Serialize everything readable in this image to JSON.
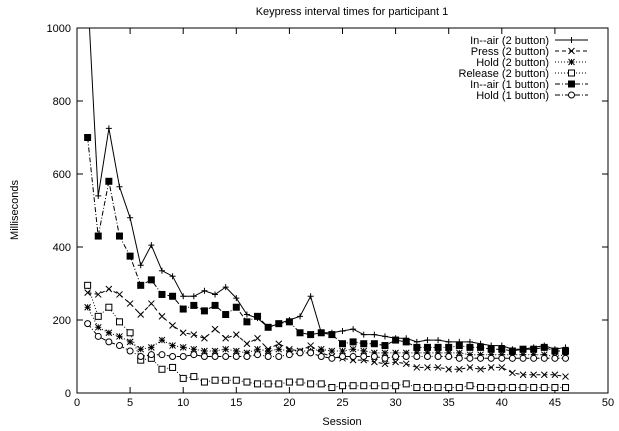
{
  "chart_data": {
    "type": "line",
    "title": "Keypress interval times for participant 1",
    "xlabel": "Session",
    "ylabel": "Milliseconds",
    "xlim": [
      0,
      50
    ],
    "ylim": [
      0,
      1000
    ],
    "xticks": [
      0,
      5,
      10,
      15,
      20,
      25,
      30,
      35,
      40,
      45,
      50
    ],
    "yticks": [
      0,
      200,
      400,
      600,
      800,
      1000
    ],
    "grid": false,
    "legend_position": "top-right",
    "x": [
      1,
      2,
      3,
      4,
      5,
      6,
      7,
      8,
      9,
      10,
      11,
      12,
      13,
      14,
      15,
      16,
      17,
      18,
      19,
      20,
      21,
      22,
      23,
      24,
      25,
      26,
      27,
      28,
      29,
      30,
      31,
      32,
      33,
      34,
      35,
      36,
      37,
      38,
      39,
      40,
      41,
      42,
      43,
      44,
      45,
      46
    ],
    "series": [
      {
        "name": "In--air (2 button)",
        "line_style": "solid",
        "marker": "plus",
        "values": [
          1100,
          540,
          725,
          565,
          480,
          350,
          405,
          335,
          320,
          265,
          265,
          280,
          270,
          290,
          260,
          215,
          205,
          180,
          190,
          200,
          210,
          265,
          165,
          165,
          170,
          175,
          160,
          160,
          155,
          150,
          150,
          140,
          145,
          145,
          140,
          140,
          140,
          135,
          130,
          130,
          120,
          120,
          125,
          130,
          120,
          125
        ]
      },
      {
        "name": "Press (2 button)",
        "line_style": "dashed",
        "marker": "x",
        "values": [
          275,
          270,
          285,
          270,
          245,
          215,
          245,
          210,
          185,
          165,
          160,
          150,
          175,
          150,
          160,
          135,
          150,
          120,
          135,
          120,
          115,
          130,
          110,
          100,
          95,
          90,
          90,
          85,
          80,
          85,
          80,
          70,
          70,
          70,
          65,
          65,
          70,
          65,
          70,
          70,
          55,
          50,
          50,
          50,
          50,
          45
        ]
      },
      {
        "name": "Hold (2 button)",
        "line_style": "dotted",
        "marker": "star",
        "values": [
          235,
          180,
          165,
          155,
          140,
          120,
          125,
          145,
          130,
          125,
          120,
          115,
          115,
          120,
          115,
          110,
          120,
          115,
          120,
          115,
          115,
          115,
          120,
          115,
          115,
          120,
          115,
          110,
          110,
          110,
          110,
          110,
          110,
          110,
          110,
          110,
          105,
          105,
          105,
          105,
          105,
          105,
          105,
          105,
          100,
          105
        ]
      },
      {
        "name": "Release (2 button)",
        "line_style": "dotted",
        "marker": "open-square",
        "values": [
          295,
          210,
          235,
          195,
          165,
          90,
          95,
          65,
          70,
          40,
          45,
          30,
          35,
          35,
          35,
          30,
          25,
          25,
          25,
          30,
          30,
          25,
          25,
          15,
          20,
          20,
          20,
          20,
          20,
          20,
          25,
          15,
          15,
          15,
          15,
          15,
          20,
          15,
          15,
          15,
          15,
          15,
          15,
          15,
          15,
          15
        ]
      },
      {
        "name": "In--air (1 button)",
        "line_style": "dash-dot",
        "marker": "filled-square",
        "values": [
          700,
          430,
          580,
          430,
          375,
          295,
          310,
          270,
          265,
          230,
          240,
          225,
          240,
          215,
          235,
          195,
          210,
          180,
          190,
          195,
          165,
          160,
          165,
          160,
          135,
          140,
          135,
          135,
          130,
          145,
          140,
          125,
          125,
          125,
          125,
          130,
          125,
          125,
          120,
          120,
          115,
          120,
          120,
          125,
          115,
          115
        ]
      },
      {
        "name": "Hold (1 button)",
        "line_style": "dash-dot",
        "marker": "open-circle",
        "values": [
          190,
          155,
          140,
          130,
          115,
          100,
          105,
          105,
          100,
          100,
          105,
          100,
          100,
          100,
          100,
          100,
          105,
          100,
          100,
          105,
          110,
          110,
          100,
          95,
          100,
          100,
          100,
          100,
          95,
          100,
          100,
          100,
          100,
          100,
          100,
          95,
          95,
          95,
          95,
          95,
          95,
          95,
          95,
          95,
          95,
          95
        ]
      }
    ]
  }
}
